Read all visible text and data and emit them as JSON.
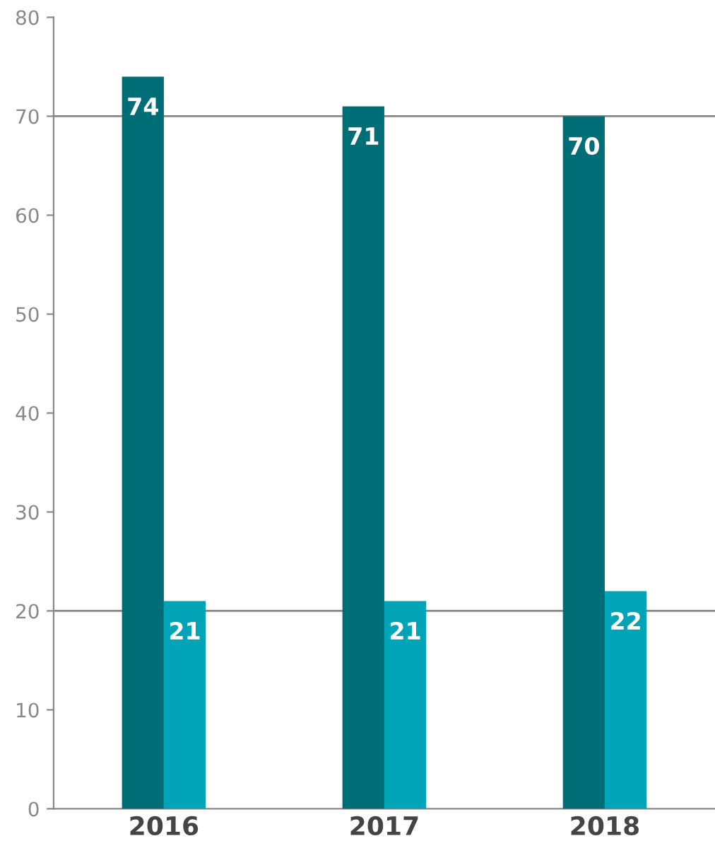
{
  "chart_data": {
    "type": "bar",
    "categories": [
      "2016",
      "2017",
      "2018"
    ],
    "series": [
      {
        "color": "#006e76",
        "values": [
          74,
          71,
          70
        ]
      },
      {
        "color": "#00a4b6",
        "values": [
          21,
          21,
          22
        ]
      }
    ],
    "ylim": [
      0,
      80
    ],
    "yticks": [
      0,
      10,
      20,
      30,
      40,
      50,
      60,
      70,
      80
    ],
    "grid": false,
    "data_labels": true,
    "ref_lines": [
      {
        "axis": "y",
        "value": 20,
        "color": "#888888"
      },
      {
        "axis": "y",
        "value": 70,
        "color": "#888888"
      }
    ]
  }
}
